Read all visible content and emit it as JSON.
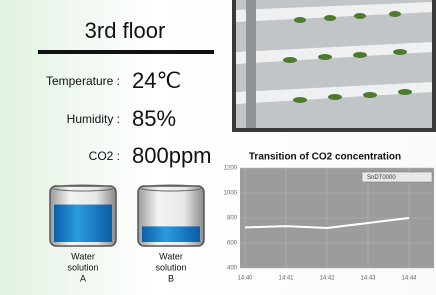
{
  "panel": {
    "title": "3rd floor",
    "readings": [
      {
        "label": "Temperature :",
        "value": "24℃"
      },
      {
        "label": "Humidity :",
        "value": "85%"
      },
      {
        "label": "CO2 :",
        "value": "800ppm"
      }
    ],
    "tanks": [
      {
        "label_lines": [
          "Water",
          "solution",
          "A"
        ],
        "level": 72
      },
      {
        "label_lines": [
          "Water",
          "solution",
          "B"
        ],
        "level": 30
      }
    ]
  },
  "chart_data": {
    "type": "line",
    "title": "Transition of CO2 concentration",
    "categories": [
      "14:40",
      "14:41",
      "14:42",
      "14:43",
      "14:44"
    ],
    "series": [
      {
        "name": "SnDT0000",
        "color": "#ffffff",
        "values": [
          725,
          735,
          720,
          760,
          800
        ]
      }
    ],
    "ylim": [
      400,
      1200
    ],
    "yticks": [
      400,
      600,
      800,
      1000,
      1200
    ],
    "grid": true
  }
}
